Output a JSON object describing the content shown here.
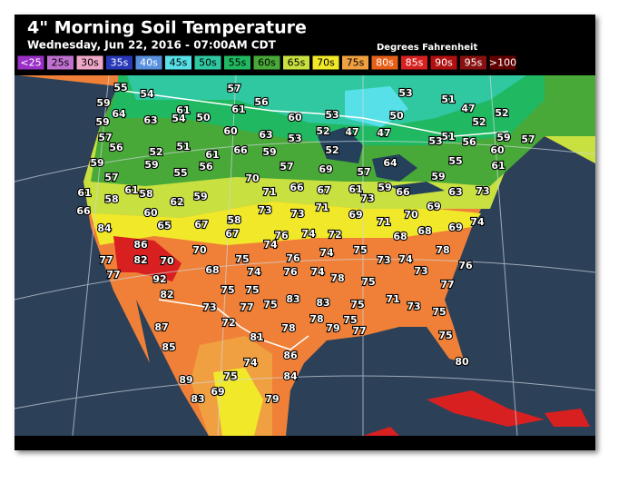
{
  "header": {
    "title": "4\" Morning Soil Temperature",
    "subtitle": "Wednesday, Jun 22, 2016 - 07:00AM CDT",
    "units": "Degrees Fahrenheit"
  },
  "legend": [
    {
      "label": "<25",
      "color": "#9a30c8"
    },
    {
      "label": "25s",
      "color": "#c070d0"
    },
    {
      "label": "30s",
      "color": "#f0a8c8"
    },
    {
      "label": "35s",
      "color": "#2838b8"
    },
    {
      "label": "40s",
      "color": "#5890e0"
    },
    {
      "label": "45s",
      "color": "#58e0e8"
    },
    {
      "label": "50s",
      "color": "#30c8a0"
    },
    {
      "label": "55s",
      "color": "#20b860"
    },
    {
      "label": "60s",
      "color": "#48a838"
    },
    {
      "label": "65s",
      "color": "#c8e040"
    },
    {
      "label": "70s",
      "color": "#f0e828"
    },
    {
      "label": "75s",
      "color": "#f0a040"
    },
    {
      "label": "80s",
      "color": "#e86018"
    },
    {
      "label": "85s",
      "color": "#d82020"
    },
    {
      "label": "90s",
      "color": "#b01010"
    },
    {
      "label": "95s",
      "color": "#881010"
    },
    {
      "label": ">100",
      "color": "#600000"
    }
  ],
  "readings": [
    55,
    54,
    57,
    56,
    53,
    51,
    47,
    52,
    52,
    61,
    54,
    50,
    61,
    60,
    53,
    50,
    59,
    64,
    57,
    63,
    59,
    56,
    52,
    51,
    60,
    63,
    53,
    52,
    47,
    47,
    51,
    56,
    59,
    57,
    60,
    53,
    52,
    66,
    61,
    59,
    59,
    59,
    55,
    56,
    57,
    69,
    57,
    64,
    55,
    59,
    61,
    57,
    70,
    66,
    61,
    59,
    66,
    63,
    73,
    61,
    61,
    58,
    59,
    71,
    67,
    73,
    62,
    58,
    66,
    60,
    65,
    73,
    73,
    71,
    69,
    71,
    70,
    69,
    69,
    74,
    84,
    67,
    58,
    67,
    76,
    74,
    72,
    68,
    68,
    86,
    70,
    74,
    74,
    75,
    78,
    77,
    82,
    70,
    75,
    76,
    73,
    74,
    73,
    76,
    77,
    92,
    68,
    74,
    76,
    74,
    78,
    75,
    77,
    82,
    75,
    75,
    83,
    83,
    75,
    71,
    73,
    75,
    73,
    77,
    75,
    78,
    75,
    79,
    78,
    72,
    87,
    81,
    77,
    75,
    85,
    86,
    74,
    80,
    75,
    84,
    89,
    83,
    69,
    79
  ]
}
